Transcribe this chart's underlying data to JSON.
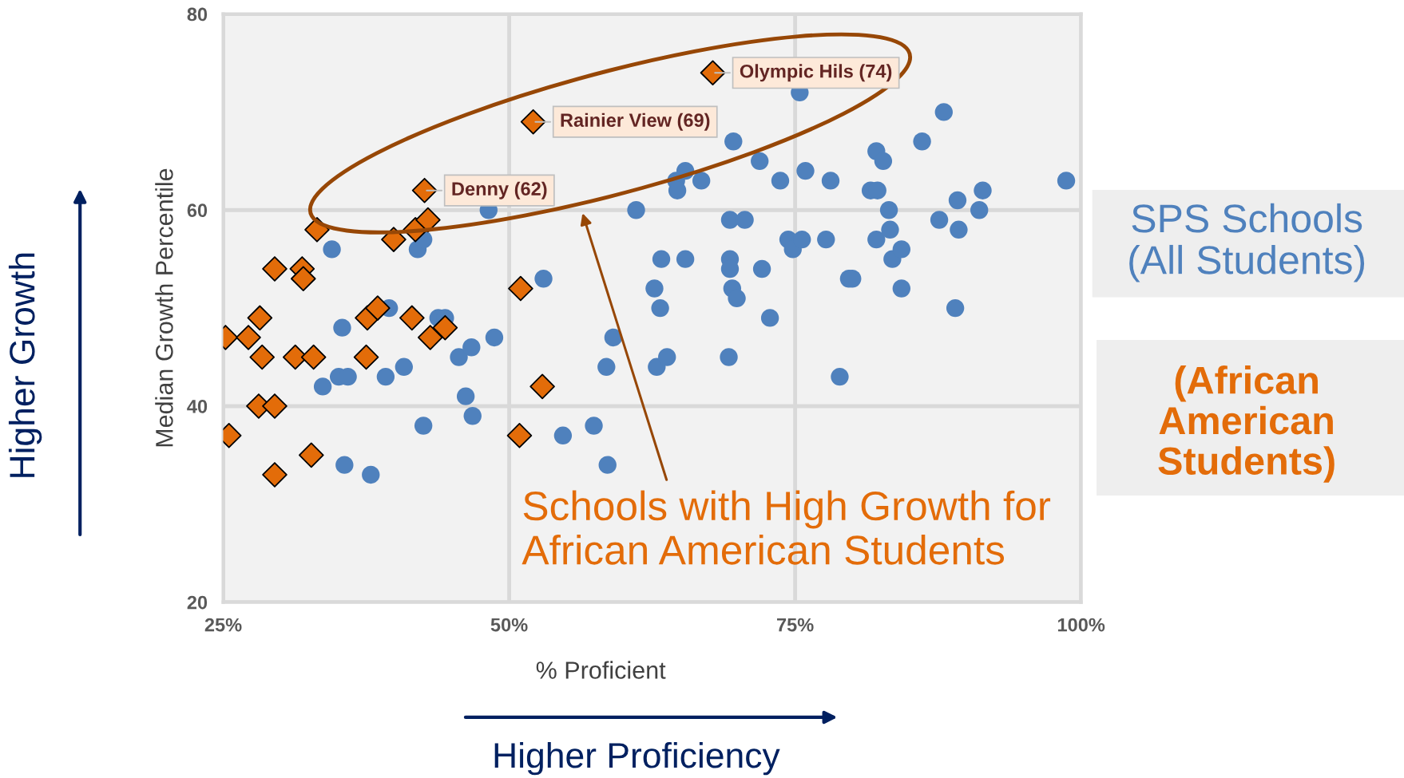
{
  "chart_data": {
    "type": "scatter",
    "xlabel": "% Proficient",
    "ylabel": "Median Growth Percentile",
    "xlim": [
      25,
      100
    ],
    "xticks": [
      {
        "value": 25,
        "label": "25%"
      },
      {
        "value": 50,
        "label": "50%"
      },
      {
        "value": 75,
        "label": "75%"
      },
      {
        "value": 100,
        "label": "100%"
      }
    ],
    "ylim": [
      20,
      80
    ],
    "yticks": [
      20,
      40,
      60,
      80
    ],
    "grid": true,
    "legend": "right",
    "series": [
      {
        "name": "SPS Schools\n(All Students)",
        "color": "#4f81bd",
        "marker": "circle",
        "x": [
          34.5,
          35.4,
          33.7,
          35.1,
          35.9,
          35.6,
          37.9,
          39.2,
          39.5,
          40.8,
          42.0,
          42.5,
          42.5,
          43.8,
          44.4,
          45.6,
          46.2,
          46.7,
          46.8,
          48.2,
          48.7,
          53.0,
          54.7,
          57.4,
          58.6,
          58.5,
          59.1,
          61.1,
          62.7,
          62.9,
          63.2,
          63.3,
          63.8,
          64.6,
          64.7,
          65.4,
          65.4,
          66.8,
          69.2,
          69.3,
          69.3,
          69.3,
          69.5,
          69.6,
          69.9,
          70.6,
          71.9,
          72.1,
          72.8,
          73.7,
          74.4,
          74.8,
          75.6,
          75.4,
          75.9,
          77.7,
          78.1,
          78.9,
          79.7,
          80.0,
          81.6,
          82.1,
          82.2,
          82.1,
          82.7,
          83.2,
          83.3,
          83.5,
          84.3,
          84.3,
          86.1,
          87.6,
          88.0,
          89.0,
          89.2,
          89.3,
          91.1,
          91.4,
          98.7
        ],
        "values": [
          56,
          48,
          42,
          43,
          43,
          34,
          33,
          43,
          50,
          44,
          56,
          57,
          38,
          49,
          49,
          45,
          41,
          46,
          39,
          60,
          47,
          53,
          37,
          38,
          34,
          44,
          47,
          60,
          52,
          44,
          50,
          55,
          45,
          63,
          62,
          64,
          55,
          63,
          45,
          59,
          55,
          54,
          52,
          67,
          51,
          59,
          65,
          54,
          49,
          63,
          57,
          56,
          57,
          72,
          64,
          57,
          63,
          43,
          53,
          53,
          62,
          66,
          62,
          57,
          65,
          60,
          58,
          55,
          52,
          56,
          67,
          59,
          70,
          50,
          61,
          58,
          60,
          62,
          63
        ]
      },
      {
        "name": "(African\nAmerican\nStudents)",
        "color": "#e36c09",
        "marker": "diamond",
        "x": [
          25.2,
          27.2,
          28.2,
          28.4,
          28.1,
          29.5,
          25.5,
          29.5,
          29.5,
          31.9,
          32.0,
          31.3,
          32.9,
          32.7,
          33.2,
          37.5,
          37.6,
          38.5,
          39.9,
          41.5,
          41.8,
          42.9,
          42.6,
          43.1,
          44.4,
          51.0,
          50.9,
          52.9,
          52.1,
          67.8
        ],
        "values": [
          47,
          47,
          49,
          45,
          40,
          40,
          37,
          33,
          54,
          54,
          53,
          45,
          45,
          35,
          58,
          45,
          49,
          50,
          57,
          49,
          58,
          59,
          62,
          47,
          48,
          52,
          37,
          42,
          69,
          74
        ]
      }
    ],
    "annotations": [
      "Schools with High Growth for\nAfrican American Students",
      "Higher Growth",
      "Higher Proficiency",
      {
        "text": "Olympic Hils (74)",
        "x": 67.8,
        "y": 74
      },
      {
        "text": "Rainier View (69)",
        "x": 52.1,
        "y": 69
      },
      {
        "text": "Denny (62)",
        "x": 42.6,
        "y": 62
      }
    ]
  }
}
